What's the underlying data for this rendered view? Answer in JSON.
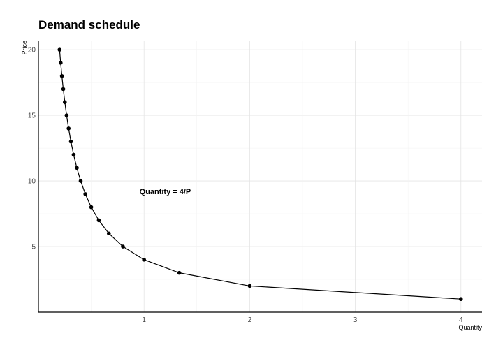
{
  "chart_data": {
    "type": "line",
    "title": "Demand schedule",
    "xlabel": "Quantity",
    "ylabel": "Price",
    "xlim": [
      0,
      4.2
    ],
    "ylim": [
      0,
      20.7
    ],
    "xticks": [
      1,
      2,
      3,
      4
    ],
    "yticks": [
      5,
      10,
      15,
      20
    ],
    "grid": true,
    "annotation": {
      "text": "Quantity = 4/P",
      "x": 1.2,
      "y": 9.2
    },
    "series": [
      {
        "x": [
          0.2,
          0.2105,
          0.2222,
          0.2353,
          0.25,
          0.2667,
          0.2857,
          0.3077,
          0.3333,
          0.3636,
          0.4,
          0.4444,
          0.5,
          0.5714,
          0.6667,
          0.8,
          1.0,
          1.3333,
          2.0,
          4.0
        ],
        "y": [
          20,
          19,
          18,
          17,
          16,
          15,
          14,
          13,
          12,
          11,
          10,
          9,
          8,
          7,
          6,
          5,
          4,
          3,
          2,
          1
        ],
        "color": "#000000"
      }
    ]
  }
}
